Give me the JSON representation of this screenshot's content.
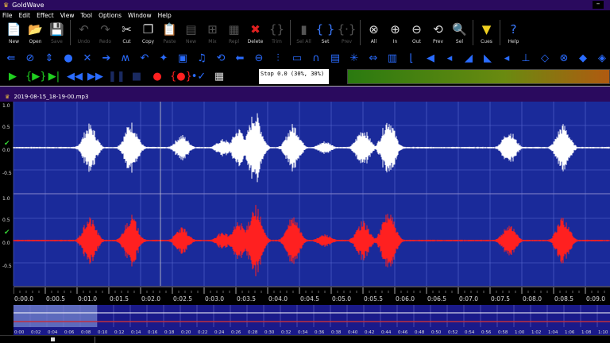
{
  "app": {
    "title": "GoldWave",
    "minimize": "–"
  },
  "menu": [
    "File",
    "Edit",
    "Effect",
    "View",
    "Tool",
    "Options",
    "Window",
    "Help"
  ],
  "toolbar": [
    {
      "label": "New",
      "icon": "new-file-icon",
      "glyph": "📄",
      "enabled": true
    },
    {
      "label": "Open",
      "icon": "open-folder-icon",
      "glyph": "📂",
      "enabled": true
    },
    {
      "label": "Save",
      "icon": "save-icon",
      "glyph": "💾",
      "enabled": false
    },
    {
      "label": "Undo",
      "icon": "undo-icon",
      "glyph": "↶",
      "enabled": false
    },
    {
      "label": "Redo",
      "icon": "redo-icon",
      "glyph": "↷",
      "enabled": false
    },
    {
      "label": "Cut",
      "icon": "scissors-icon",
      "glyph": "✂",
      "enabled": true
    },
    {
      "label": "Copy",
      "icon": "copy-icon",
      "glyph": "❐",
      "enabled": true
    },
    {
      "label": "Paste",
      "icon": "paste-icon",
      "glyph": "📋",
      "enabled": false
    },
    {
      "label": "New",
      "icon": "paste-new-icon",
      "glyph": "▤",
      "enabled": false
    },
    {
      "label": "Mix",
      "icon": "mix-icon",
      "glyph": "⊞",
      "enabled": false
    },
    {
      "label": "Repl",
      "icon": "replace-icon",
      "glyph": "▦",
      "enabled": false
    },
    {
      "label": "Delete",
      "icon": "delete-icon",
      "glyph": "✖",
      "enabled": true
    },
    {
      "label": "Trim",
      "icon": "trim-icon",
      "glyph": "{}",
      "enabled": false
    },
    {
      "label": "Sel All",
      "icon": "select-all-icon",
      "glyph": "▮",
      "enabled": false
    },
    {
      "label": "Set",
      "icon": "set-selection-icon",
      "glyph": "{ }",
      "enabled": true
    },
    {
      "label": "Prev",
      "icon": "previous-selection-icon",
      "glyph": "{·}",
      "enabled": false
    },
    {
      "label": "All",
      "icon": "zoom-all-icon",
      "glyph": "⊗",
      "enabled": true
    },
    {
      "label": "In",
      "icon": "zoom-in-icon",
      "glyph": "⊕",
      "enabled": true
    },
    {
      "label": "Out",
      "icon": "zoom-out-icon",
      "glyph": "⊖",
      "enabled": true
    },
    {
      "label": "Prev",
      "icon": "zoom-previous-icon",
      "glyph": "⟲",
      "enabled": true
    },
    {
      "label": "Sel",
      "icon": "zoom-selection-icon",
      "glyph": "🔍",
      "enabled": true
    },
    {
      "label": "Cues",
      "icon": "cues-icon",
      "glyph": "▼",
      "enabled": true
    },
    {
      "label": "Help",
      "icon": "help-icon",
      "glyph": "?",
      "enabled": true
    }
  ],
  "effects_icons": [
    "⇚",
    "⊘",
    "⇕",
    "●",
    "✕",
    "➔",
    "ʍ",
    "↶",
    "✦",
    "▣",
    "♫",
    "⟲",
    "⬅",
    "⊖",
    "⫶",
    "▭",
    "∩",
    "▤",
    "✳",
    "⇔",
    "▥",
    "⌊",
    "◀",
    "◂",
    "◢",
    "◣",
    "◂",
    "⊥",
    "◇",
    "⊗",
    "◆",
    "◈"
  ],
  "transport": [
    {
      "name": "play-icon",
      "glyph": "▶",
      "color": "#20d020"
    },
    {
      "name": "play-selection-icon",
      "glyph": "{▶}",
      "color": "#20d020"
    },
    {
      "name": "play-to-end-icon",
      "glyph": "▶|",
      "color": "#20d020"
    },
    {
      "name": "rewind-icon",
      "glyph": "◀◀",
      "color": "#2a6cff"
    },
    {
      "name": "fast-forward-icon",
      "glyph": "▶▶",
      "color": "#2a6cff"
    },
    {
      "name": "pause-icon",
      "glyph": "❚❚",
      "color": "#1a2a60"
    },
    {
      "name": "stop-icon",
      "glyph": "■",
      "color": "#1a2a60"
    },
    {
      "name": "record-icon",
      "glyph": "●",
      "color": "#ff2020"
    },
    {
      "name": "record-selection-icon",
      "glyph": "{●}",
      "color": "#ff2020"
    },
    {
      "name": "set-marker-icon",
      "glyph": "•✓",
      "color": "#2a6cff"
    },
    {
      "name": "control-properties-icon",
      "glyph": "▦",
      "color": "#dddddd"
    }
  ],
  "status": "Stop 0.0 (30%, 30%)",
  "document": {
    "title": "2019-08-15_18-19-00.mp3"
  },
  "axis": {
    "top": "1.0",
    "half": "0.5",
    "zero": "0.0",
    "neg_half": "-0.5"
  },
  "timeline": [
    "0:00.0",
    "0:00.5",
    "0:01.0",
    "0:01.5",
    "0:02.0",
    "0:02.5",
    "0:03.0",
    "0:03.5",
    "0:04.0",
    "0:04.5",
    "0:05.0",
    "0:05.5",
    "0:06.0",
    "0:06.5",
    "0:07.0",
    "0:07.5",
    "0:08.0",
    "0:08.5",
    "0:09.0"
  ],
  "overview_ticks": [
    "0:00",
    "0:02",
    "0:04",
    "0:06",
    "0:08",
    "0:10",
    "0:12",
    "0:14",
    "0:16",
    "0:18",
    "0:20",
    "0:22",
    "0:24",
    "0:26",
    "0:28",
    "0:30",
    "0:32",
    "0:34",
    "0:36",
    "0:38",
    "0:40",
    "0:42",
    "0:44",
    "0:46",
    "0:48",
    "0:50",
    "0:52",
    "0:54",
    "0:56",
    "0:58",
    "1:00",
    "1:02",
    "1:04",
    "1:06",
    "1:08",
    "1:10"
  ],
  "colors": {
    "left_channel": "#ffffff",
    "right_channel": "#ff2020",
    "background": "#1a2a9a",
    "title": "#2a0a5e"
  },
  "bursts_seconds": [
    [
      1.2,
      0.55
    ],
    [
      1.85,
      0.6
    ],
    [
      2.65,
      0.3
    ],
    [
      3.3,
      0.2
    ],
    [
      3.55,
      0.45
    ],
    [
      3.8,
      0.85
    ],
    [
      4.4,
      0.55
    ],
    [
      4.9,
      0.15
    ],
    [
      5.5,
      0.45
    ],
    [
      5.9,
      0.7
    ],
    [
      7.8,
      0.4
    ],
    [
      8.65,
      0.55
    ]
  ]
}
